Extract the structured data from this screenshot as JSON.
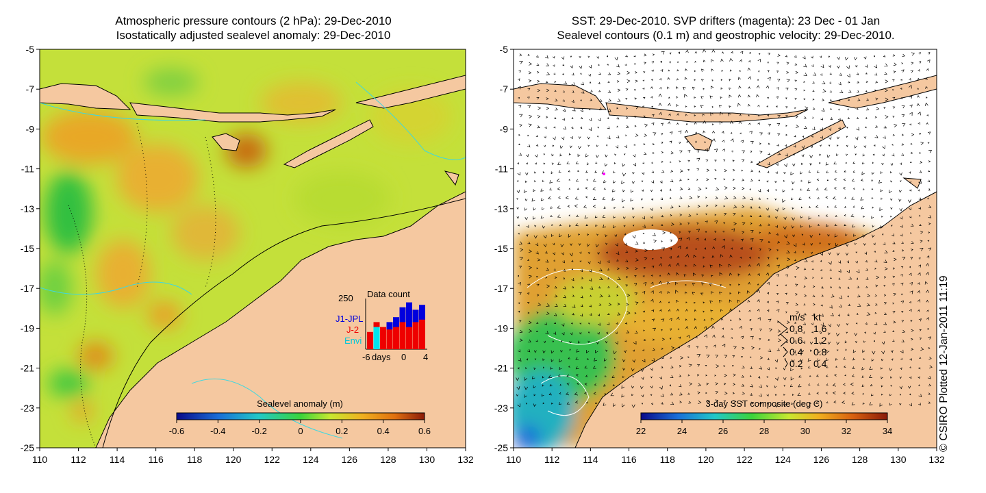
{
  "left_panel": {
    "title_line1": "Atmospheric pressure contours (2 hPa): 29-Dec-2010",
    "title_line2": "Isostatically adjusted sealevel anomaly: 29-Dec-2010",
    "lat_ticks": [
      "-5",
      "-7",
      "-9",
      "-11",
      "-13",
      "-15",
      "-17",
      "-19",
      "-21",
      "-23",
      "-25"
    ],
    "lon_ticks": [
      "110",
      "112",
      "114",
      "116",
      "118",
      "120",
      "122",
      "124",
      "126",
      "128",
      "130",
      "132"
    ],
    "colorbar": {
      "title": "Sealevel anomaly (m)",
      "ticks": [
        "-0.6",
        "-0.4",
        "-0.2",
        "0",
        "0.2",
        "0.4",
        "0.6"
      ]
    },
    "data_count": {
      "title": "Data count",
      "ymax_label": "250",
      "legend": [
        {
          "label": "J1-JPL",
          "color": "#0000dd"
        },
        {
          "label": "J-2",
          "color": "#ee0000"
        },
        {
          "label": "Envi",
          "color": "#00e5ee"
        }
      ],
      "x_labels": [
        "-6",
        "days",
        "0",
        "4"
      ],
      "bars": [
        {
          "j1": 0.25,
          "j2": 0.35,
          "envi": 0.0
        },
        {
          "j1": 0.1,
          "j2": 0.55,
          "envi": 0.45
        },
        {
          "j1": 0.35,
          "j2": 0.45,
          "envi": 0.0
        },
        {
          "j1": 0.55,
          "j2": 0.4,
          "envi": 0.0
        },
        {
          "j1": 0.65,
          "j2": 0.45,
          "envi": 0.0
        },
        {
          "j1": 0.85,
          "j2": 0.55,
          "envi": 0.0
        },
        {
          "j1": 0.95,
          "j2": 0.45,
          "envi": 0.0
        },
        {
          "j1": 0.8,
          "j2": 0.55,
          "envi": 0.0
        },
        {
          "j1": 0.9,
          "j2": 0.6,
          "envi": 0.0
        }
      ]
    }
  },
  "right_panel": {
    "title_line1": "SST: 29-Dec-2010. SVP drifters (magenta): 23 Dec - 01 Jan",
    "title_line2": "Sealevel contours (0.1 m) and geostrophic velocity: 29-Dec-2010.",
    "lat_ticks": [
      "-5",
      "-7",
      "-9",
      "-11",
      "-13",
      "-15",
      "-17",
      "-19",
      "-21",
      "-23",
      "-25"
    ],
    "lon_ticks": [
      "110",
      "112",
      "114",
      "116",
      "118",
      "120",
      "122",
      "124",
      "126",
      "128",
      "130",
      "132"
    ],
    "colorbar": {
      "title": "3-day SST composite (deg C)",
      "ticks": [
        "22",
        "24",
        "26",
        "28",
        "30",
        "32",
        "34"
      ]
    },
    "velocity_legend": {
      "header_ms": "m/s",
      "header_kt": "kt",
      "rows": [
        {
          "ms": "0.8",
          "kt": "1.6"
        },
        {
          "ms": "0.6",
          "kt": "1.2"
        },
        {
          "ms": "0.4",
          "kt": "0.8"
        },
        {
          "ms": "0.2",
          "kt": "0.4"
        }
      ]
    }
  },
  "credit": "© CSIRO Plotted 12-Jan-2011 11:19",
  "colors": {
    "land": "#f5c8a0",
    "ocean_base": "#cfe83a",
    "coast_cyan": "#3ed8e0",
    "data_cyan": "#00e5ee",
    "data_red": "#ee0000",
    "data_blue": "#0000dd"
  }
}
